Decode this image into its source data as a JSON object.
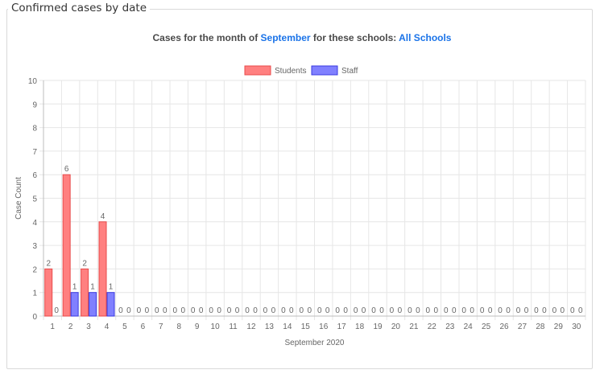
{
  "panel": {
    "legend": "Confirmed cases by date"
  },
  "subtitle": {
    "prefix": "Cases for the month of ",
    "month": "September",
    "middle": " for these schools: ",
    "schools": "All Schools"
  },
  "colors": {
    "students_fill": "#ff8080",
    "students_stroke": "#e84a4a",
    "staff_fill": "#8080ff",
    "staff_stroke": "#3a3ae0",
    "grid": "#e6e6e6",
    "text": "#666666",
    "accent": "#1a73e8"
  },
  "chart_data": {
    "type": "bar",
    "title": "",
    "xlabel": "September 2020",
    "ylabel": "Case Count",
    "ylim": [
      0,
      10
    ],
    "grid": true,
    "legend_position": "top-center",
    "categories": [
      "1",
      "2",
      "3",
      "4",
      "5",
      "6",
      "7",
      "8",
      "9",
      "10",
      "11",
      "12",
      "13",
      "14",
      "15",
      "16",
      "17",
      "18",
      "19",
      "20",
      "21",
      "22",
      "23",
      "24",
      "25",
      "26",
      "27",
      "28",
      "29",
      "30"
    ],
    "series": [
      {
        "name": "Students",
        "values": [
          2,
          6,
          2,
          4,
          0,
          0,
          0,
          0,
          0,
          0,
          0,
          0,
          0,
          0,
          0,
          0,
          0,
          0,
          0,
          0,
          0,
          0,
          0,
          0,
          0,
          0,
          0,
          0,
          0,
          0
        ]
      },
      {
        "name": "Staff",
        "values": [
          0,
          1,
          1,
          1,
          0,
          0,
          0,
          0,
          0,
          0,
          0,
          0,
          0,
          0,
          0,
          0,
          0,
          0,
          0,
          0,
          0,
          0,
          0,
          0,
          0,
          0,
          0,
          0,
          0,
          0
        ]
      }
    ]
  }
}
